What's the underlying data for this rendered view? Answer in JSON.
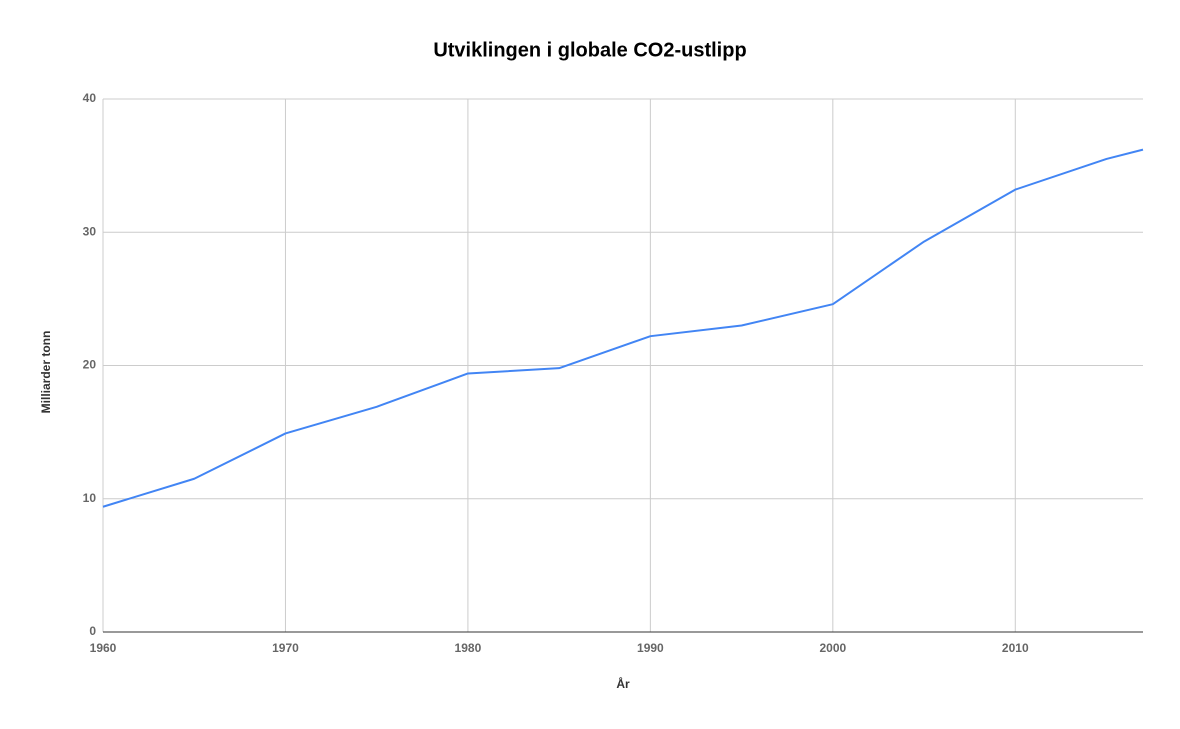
{
  "chart_data": {
    "type": "line",
    "title": "Utviklingen i globale CO2-ustlipp",
    "x_label": "År",
    "y_label": "Milliarder tonn",
    "x": [
      1960,
      1965,
      1970,
      1975,
      1980,
      1985,
      1990,
      1995,
      2000,
      2005,
      2010,
      2015,
      2017
    ],
    "series": [
      {
        "name": "Milliarder tonn",
        "color": "#4285f4",
        "values": [
          9.4,
          11.5,
          14.9,
          16.9,
          19.4,
          19.8,
          22.2,
          23.0,
          24.6,
          29.3,
          33.2,
          35.5,
          36.2
        ]
      }
    ],
    "xlim": [
      1960,
      2017
    ],
    "xticks": [
      1960,
      1970,
      1980,
      1990,
      2000,
      2010
    ],
    "ylim": [
      0,
      40
    ],
    "yticks": [
      0,
      10,
      20,
      30,
      40
    ],
    "grid": true
  }
}
